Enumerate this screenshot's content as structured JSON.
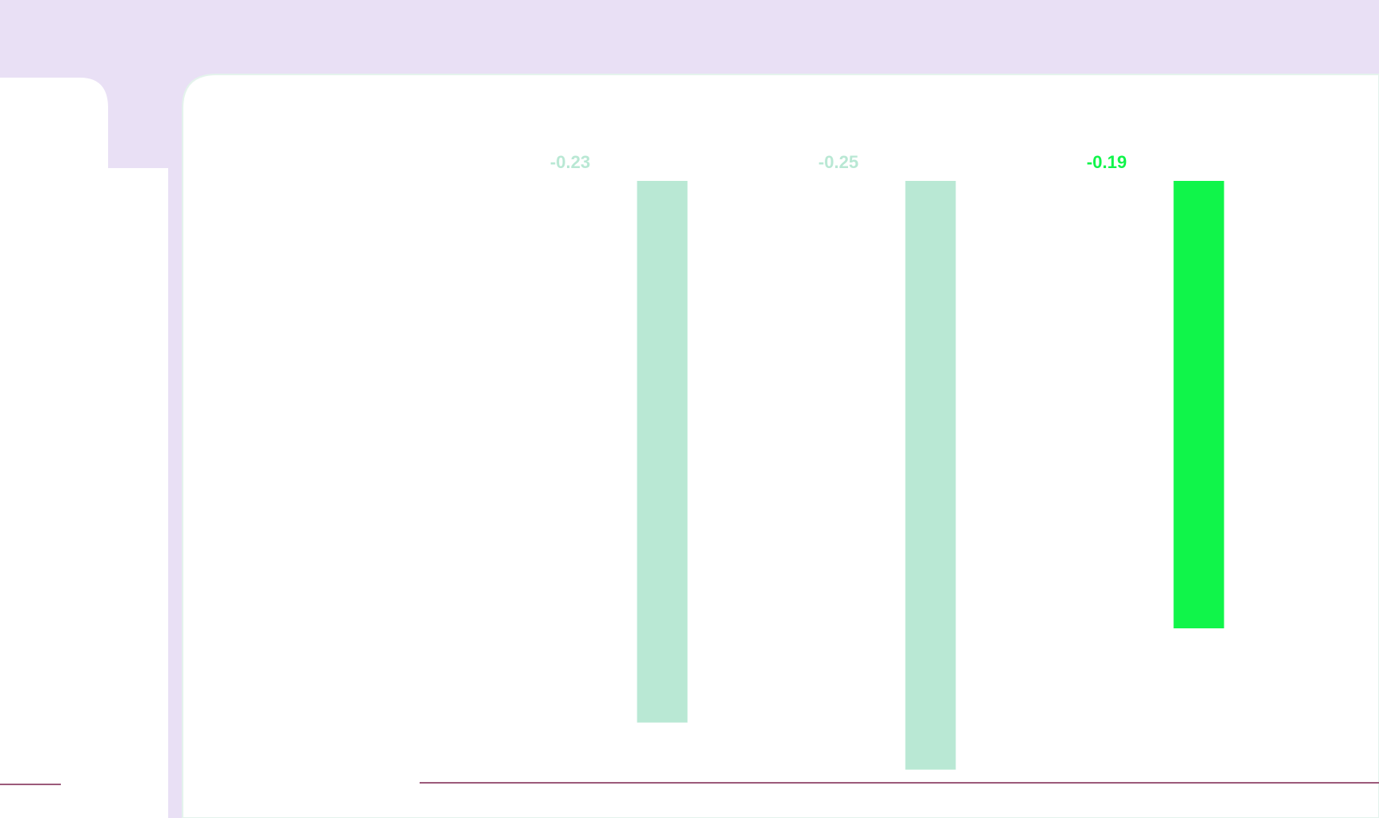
{
  "chart_data": {
    "type": "bar",
    "categories": [
      null,
      null,
      null
    ],
    "series": [
      {
        "values": [
          -0.23,
          -0.25,
          -0.19
        ],
        "value_labels": [
          "-0.23",
          "-0.25",
          "-0.19"
        ],
        "colors": [
          "#b9e8d4",
          "#b9e8d4",
          "#10f54a"
        ]
      }
    ],
    "ylim": [
      -0.26,
      0
    ]
  }
}
